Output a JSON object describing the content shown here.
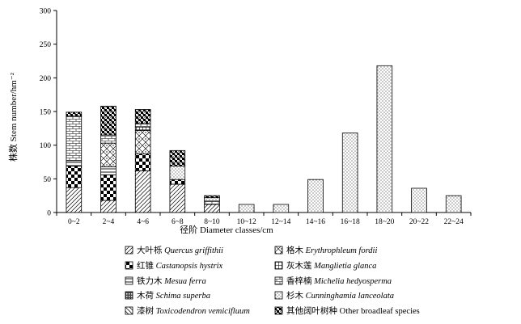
{
  "chart_data": {
    "type": "bar",
    "stacked": true,
    "xlabel": "径阶 Diameter classes/cm",
    "ylabel": "株数 Stem number/hm⁻²",
    "ylim": [
      0,
      300
    ],
    "y_ticks": [
      0,
      50,
      100,
      150,
      200,
      250,
      300
    ],
    "grid": false,
    "legend_position": "bottom",
    "categories": [
      "0~2",
      "2~4",
      "4~6",
      "6~8",
      "8~10",
      "10~12",
      "12~14",
      "14~16",
      "16~18",
      "18~20",
      "20~22",
      "22~24"
    ],
    "series": [
      {
        "name": "Quercus griffithii",
        "name_cn": "大叶栎",
        "legend_cn": "大叶栎",
        "legend_latin": "Quercus griffithii",
        "pattern": "diag",
        "values": [
          37,
          18,
          62,
          42,
          12,
          0,
          0,
          0,
          0,
          0,
          0,
          0
        ]
      },
      {
        "name": "Castanopsis hystrix",
        "name_cn": "红锥",
        "legend_cn": "红锥",
        "legend_latin": "Castanopsis hystrix",
        "pattern": "checker",
        "values": [
          32,
          38,
          25,
          7,
          0,
          0,
          0,
          0,
          0,
          0,
          0,
          0
        ]
      },
      {
        "name": "Mesua ferra",
        "name_cn": "铁力木",
        "legend_cn": "铁力木",
        "legend_latin": "Mesua ferra",
        "pattern": "hlines",
        "values": [
          8,
          12,
          0,
          0,
          0,
          0,
          0,
          0,
          0,
          0,
          0,
          0
        ]
      },
      {
        "name": "Schima superba",
        "name_cn": "木荷",
        "legend_cn": "木荷",
        "legend_latin": "Schima superba",
        "pattern": "dense",
        "values": [
          0,
          0,
          0,
          0,
          0,
          0,
          0,
          0,
          0,
          0,
          0,
          0
        ]
      },
      {
        "name": "Toxicodendron vemicifluum",
        "name_cn": "漆树",
        "legend_cn": "漆树",
        "legend_latin": "Toxicodendron vemicifluum",
        "pattern": "fdiag",
        "values": [
          0,
          0,
          0,
          0,
          0,
          0,
          0,
          0,
          0,
          0,
          0,
          0
        ]
      },
      {
        "name": "Erythrophleum fordii",
        "name_cn": "格木",
        "legend_cn": "格木",
        "legend_latin": "Erythrophleum fordii",
        "pattern": "diamond",
        "values": [
          0,
          35,
          35,
          0,
          0,
          0,
          0,
          0,
          0,
          0,
          0,
          0
        ]
      },
      {
        "name": "Manglietia glanca",
        "name_cn": "灰木莲",
        "legend_cn": "灰木莲",
        "legend_latin": "Manglietia glanca",
        "pattern": "grid",
        "values": [
          0,
          0,
          5,
          0,
          0,
          0,
          0,
          0,
          0,
          0,
          0,
          0
        ]
      },
      {
        "name": "Michelia hedyosperma",
        "name_cn": "香梓楠",
        "legend_cn": "香梓楠",
        "legend_latin": "Michelia hedyosperma",
        "pattern": "brick",
        "values": [
          66,
          12,
          5,
          0,
          5,
          0,
          0,
          0,
          0,
          0,
          0,
          0
        ]
      },
      {
        "name": "Cunninghamia lanceolata",
        "name_cn": "杉木",
        "legend_cn": "杉木",
        "legend_latin": "Cunninghamia lanceolata",
        "pattern": "dots",
        "values": [
          0,
          0,
          0,
          20,
          5,
          12,
          12,
          49,
          118,
          218,
          36,
          25
        ]
      },
      {
        "name": "Other broadleaf species",
        "name_cn": "其他阔叶树种",
        "legend_cn": "其他阔叶树种",
        "legend_latin": "Other broadleaf species",
        "pattern": "xcheck",
        "values": [
          6,
          43,
          21,
          23,
          3,
          0,
          0,
          0,
          0,
          0,
          0,
          0
        ]
      }
    ]
  }
}
